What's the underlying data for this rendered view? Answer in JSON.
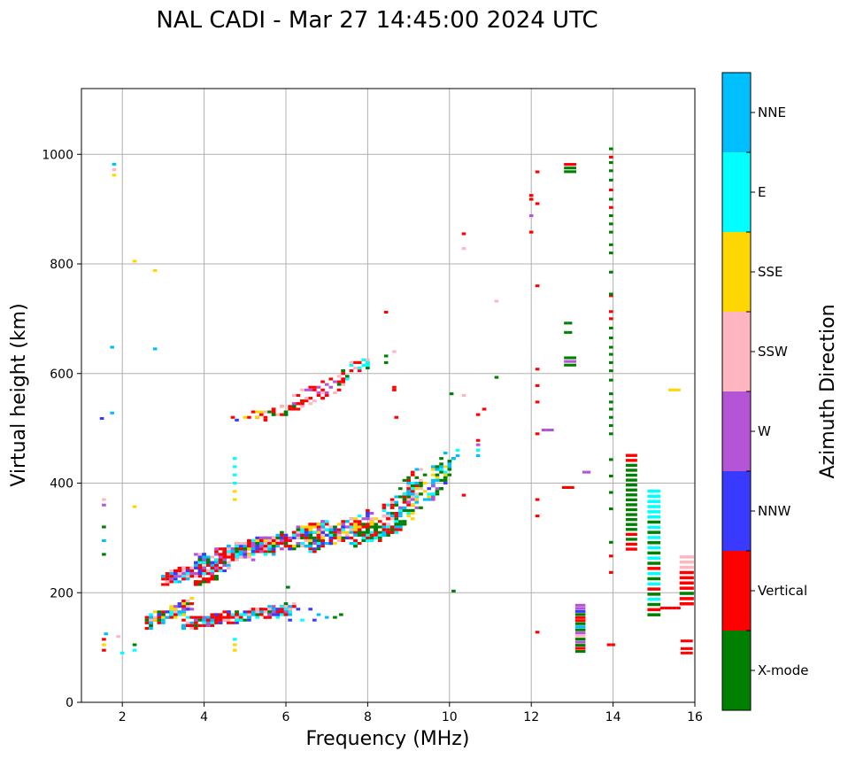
{
  "chart_data": {
    "type": "scatter",
    "title": "NAL CADI - Mar 27 14:45:00 2024 UTC",
    "xlabel": "Frequency (MHz)",
    "ylabel": "Virtual height (km)",
    "xlim": [
      1,
      16
    ],
    "ylim": [
      0,
      1120
    ],
    "xticks": [
      2,
      4,
      6,
      8,
      10,
      12,
      14,
      16
    ],
    "yticks": [
      0,
      200,
      400,
      600,
      800,
      1000
    ],
    "grid": true,
    "colorbar": {
      "label": "Azimuth Direction",
      "categories": [
        {
          "name": "X-mode",
          "color": "#008000"
        },
        {
          "name": "Vertical",
          "color": "#ff0000"
        },
        {
          "name": "NNW",
          "color": "#3a3aff"
        },
        {
          "name": "W",
          "color": "#b455d6"
        },
        {
          "name": "SSW",
          "color": "#ffb6c1"
        },
        {
          "name": "SSE",
          "color": "#ffd700"
        },
        {
          "name": "E",
          "color": "#00ffff"
        },
        {
          "name": "NNE",
          "color": "#00bfff"
        }
      ]
    },
    "cell": {
      "df": 0.1,
      "dh": 5
    },
    "points": [
      {
        "f": 1.55,
        "h": 95,
        "c": "Vertical"
      },
      {
        "f": 1.55,
        "h": 105,
        "c": "SSE"
      },
      {
        "f": 1.55,
        "h": 115,
        "c": "Vertical"
      },
      {
        "f": 1.6,
        "h": 125,
        "c": "NNE"
      },
      {
        "f": 1.55,
        "h": 270,
        "c": "X-mode"
      },
      {
        "f": 1.55,
        "h": 295,
        "c": "NNE"
      },
      {
        "f": 1.55,
        "h": 320,
        "c": "X-mode"
      },
      {
        "f": 1.55,
        "h": 360,
        "c": "W"
      },
      {
        "f": 1.55,
        "h": 370,
        "c": "SSW"
      },
      {
        "f": 1.5,
        "h": 518,
        "c": "NNW"
      },
      {
        "f": 1.75,
        "h": 528,
        "c": "NNE"
      },
      {
        "f": 1.75,
        "h": 648,
        "c": "NNE"
      },
      {
        "f": 1.8,
        "h": 962,
        "c": "SSE"
      },
      {
        "f": 1.8,
        "h": 972,
        "c": "SSW"
      },
      {
        "f": 1.8,
        "h": 982,
        "c": "NNE"
      },
      {
        "f": 2.3,
        "h": 805,
        "c": "SSE"
      },
      {
        "f": 2.8,
        "h": 788,
        "c": "SSE"
      },
      {
        "f": 2.8,
        "h": 645,
        "c": "NNE"
      },
      {
        "f": 2.3,
        "h": 357,
        "c": "SSE"
      },
      {
        "f": 2.3,
        "h": 95,
        "c": "E"
      },
      {
        "f": 2.3,
        "h": 105,
        "c": "X-mode"
      },
      {
        "f": 2.0,
        "h": 90,
        "c": "E"
      },
      {
        "f": 1.9,
        "h": 120,
        "c": "SSW"
      },
      {
        "f": 4.75,
        "h": 95,
        "c": "SSE"
      },
      {
        "f": 4.75,
        "h": 105,
        "c": "SSE"
      },
      {
        "f": 4.75,
        "h": 115,
        "c": "E"
      },
      {
        "f": 4.75,
        "h": 370,
        "c": "SSE"
      },
      {
        "f": 4.75,
        "h": 385,
        "c": "SSE"
      },
      {
        "f": 4.75,
        "h": 400,
        "c": "E"
      },
      {
        "f": 4.75,
        "h": 415,
        "c": "E"
      },
      {
        "f": 4.75,
        "h": 430,
        "c": "E"
      },
      {
        "f": 4.75,
        "h": 445,
        "c": "E"
      },
      {
        "f": 6.05,
        "h": 210,
        "c": "X-mode"
      },
      {
        "f": 6.1,
        "h": 150,
        "c": "NNW"
      },
      {
        "f": 6.3,
        "h": 170,
        "c": "NNW"
      },
      {
        "f": 6.6,
        "h": 170,
        "c": "NNW"
      },
      {
        "f": 6.7,
        "h": 150,
        "c": "NNW"
      },
      {
        "f": 6.8,
        "h": 160,
        "c": "NNE"
      },
      {
        "f": 7.0,
        "h": 155,
        "c": "NNE"
      },
      {
        "f": 7.2,
        "h": 155,
        "c": "X-mode"
      },
      {
        "f": 7.35,
        "h": 160,
        "c": "X-mode"
      },
      {
        "f": 6.4,
        "h": 150,
        "c": "E"
      },
      {
        "f": 8.45,
        "h": 620,
        "c": "X-mode"
      },
      {
        "f": 8.45,
        "h": 632,
        "c": "X-mode"
      },
      {
        "f": 8.45,
        "h": 712,
        "c": "Vertical"
      },
      {
        "f": 8.65,
        "h": 570,
        "c": "Vertical"
      },
      {
        "f": 8.65,
        "h": 575,
        "c": "Vertical"
      },
      {
        "f": 8.7,
        "h": 520,
        "c": "Vertical"
      },
      {
        "f": 8.65,
        "h": 640,
        "c": "SSW"
      },
      {
        "f": 10.35,
        "h": 855,
        "c": "Vertical"
      },
      {
        "f": 10.35,
        "h": 828,
        "c": "SSW"
      },
      {
        "f": 10.7,
        "h": 525,
        "c": "Vertical"
      },
      {
        "f": 10.85,
        "h": 535,
        "c": "Vertical"
      },
      {
        "f": 10.05,
        "h": 563,
        "c": "X-mode"
      },
      {
        "f": 10.35,
        "h": 560,
        "c": "SSW"
      },
      {
        "f": 10.35,
        "h": 378,
        "c": "Vertical"
      },
      {
        "f": 10.1,
        "h": 203,
        "c": "X-mode"
      },
      {
        "f": 11.15,
        "h": 593,
        "c": "X-mode"
      },
      {
        "f": 11.15,
        "h": 732,
        "c": "SSW"
      },
      {
        "f": 10.7,
        "h": 450,
        "c": "NNE"
      },
      {
        "f": 10.7,
        "h": 460,
        "c": "E"
      },
      {
        "f": 10.7,
        "h": 470,
        "c": "W"
      },
      {
        "f": 10.7,
        "h": 478,
        "c": "Vertical"
      },
      {
        "f": 12.0,
        "h": 858,
        "c": "Vertical"
      },
      {
        "f": 12.0,
        "h": 888,
        "c": "W"
      },
      {
        "f": 12.0,
        "h": 918,
        "c": "Vertical"
      },
      {
        "f": 12.0,
        "h": 925,
        "c": "Vertical"
      },
      {
        "f": 12.15,
        "h": 910,
        "c": "Vertical"
      },
      {
        "f": 12.15,
        "h": 968,
        "c": "Vertical"
      },
      {
        "f": 12.15,
        "h": 760,
        "c": "Vertical"
      },
      {
        "f": 12.15,
        "h": 608,
        "c": "Vertical"
      },
      {
        "f": 12.15,
        "h": 578,
        "c": "Vertical"
      },
      {
        "f": 12.15,
        "h": 548,
        "c": "Vertical"
      },
      {
        "f": 12.15,
        "h": 490,
        "c": "Vertical"
      },
      {
        "f": 12.15,
        "h": 370,
        "c": "Vertical"
      },
      {
        "f": 12.15,
        "h": 340,
        "c": "Vertical"
      },
      {
        "f": 12.15,
        "h": 128,
        "c": "Vertical"
      },
      {
        "f": 12.3,
        "h": 497,
        "c": "W"
      },
      {
        "f": 12.4,
        "h": 497,
        "c": "W"
      },
      {
        "f": 12.5,
        "h": 497,
        "c": "W"
      },
      {
        "f": 13.3,
        "h": 420,
        "c": "W"
      },
      {
        "f": 13.4,
        "h": 420,
        "c": "W"
      },
      {
        "f": 12.8,
        "h": 392,
        "c": "Vertical"
      },
      {
        "f": 12.9,
        "h": 392,
        "c": "Vertical"
      },
      {
        "f": 13.0,
        "h": 392,
        "c": "Vertical"
      },
      {
        "f": 12.85,
        "h": 692,
        "c": "X-mode"
      },
      {
        "f": 12.95,
        "h": 692,
        "c": "X-mode"
      },
      {
        "f": 12.85,
        "h": 675,
        "c": "X-mode"
      },
      {
        "f": 12.95,
        "h": 675,
        "c": "X-mode"
      },
      {
        "f": 14.0,
        "h": 105,
        "c": "Vertical"
      },
      {
        "f": 13.9,
        "h": 105,
        "c": "Vertical"
      },
      {
        "f": 13.95,
        "h": 237,
        "c": "Vertical"
      },
      {
        "f": 13.95,
        "h": 267,
        "c": "Vertical"
      },
      {
        "f": 13.95,
        "h": 292,
        "c": "X-mode"
      },
      {
        "f": 13.95,
        "h": 353,
        "c": "X-mode"
      },
      {
        "f": 13.95,
        "h": 383,
        "c": "X-mode"
      },
      {
        "f": 13.95,
        "h": 413,
        "c": "X-mode"
      },
      {
        "f": 13.95,
        "h": 443,
        "c": "X-mode"
      },
      {
        "f": 13.95,
        "h": 490,
        "c": "X-mode"
      },
      {
        "f": 13.95,
        "h": 505,
        "c": "X-mode"
      },
      {
        "f": 13.95,
        "h": 520,
        "c": "X-mode"
      },
      {
        "f": 13.95,
        "h": 535,
        "c": "X-mode"
      },
      {
        "f": 13.95,
        "h": 548,
        "c": "X-mode"
      },
      {
        "f": 13.95,
        "h": 563,
        "c": "X-mode"
      },
      {
        "f": 13.95,
        "h": 588,
        "c": "X-mode"
      },
      {
        "f": 13.95,
        "h": 605,
        "c": "X-mode"
      },
      {
        "f": 13.95,
        "h": 620,
        "c": "X-mode"
      },
      {
        "f": 13.95,
        "h": 635,
        "c": "X-mode"
      },
      {
        "f": 13.95,
        "h": 648,
        "c": "X-mode"
      },
      {
        "f": 13.95,
        "h": 665,
        "c": "X-mode"
      },
      {
        "f": 13.95,
        "h": 683,
        "c": "X-mode"
      },
      {
        "f": 13.95,
        "h": 700,
        "c": "Vertical"
      },
      {
        "f": 13.95,
        "h": 713,
        "c": "Vertical"
      },
      {
        "f": 13.95,
        "h": 742,
        "c": "Vertical"
      },
      {
        "f": 13.95,
        "h": 745,
        "c": "X-mode"
      },
      {
        "f": 13.95,
        "h": 785,
        "c": "X-mode"
      },
      {
        "f": 13.95,
        "h": 820,
        "c": "X-mode"
      },
      {
        "f": 13.95,
        "h": 835,
        "c": "X-mode"
      },
      {
        "f": 13.95,
        "h": 858,
        "c": "X-mode"
      },
      {
        "f": 13.95,
        "h": 873,
        "c": "X-mode"
      },
      {
        "f": 13.95,
        "h": 888,
        "c": "X-mode"
      },
      {
        "f": 13.95,
        "h": 903,
        "c": "Vertical"
      },
      {
        "f": 13.95,
        "h": 918,
        "c": "X-mode"
      },
      {
        "f": 13.95,
        "h": 935,
        "c": "Vertical"
      },
      {
        "f": 13.95,
        "h": 953,
        "c": "X-mode"
      },
      {
        "f": 13.95,
        "h": 970,
        "c": "X-mode"
      },
      {
        "f": 13.95,
        "h": 985,
        "c": "X-mode"
      },
      {
        "f": 13.95,
        "h": 995,
        "c": "Vertical"
      },
      {
        "f": 13.95,
        "h": 1010,
        "c": "X-mode"
      },
      {
        "f": 15.4,
        "h": 570,
        "c": "SSE"
      },
      {
        "f": 15.5,
        "h": 570,
        "c": "SSE"
      },
      {
        "f": 15.6,
        "h": 570,
        "c": "SSE"
      },
      {
        "f": 15.2,
        "h": 172,
        "c": "Vertical"
      },
      {
        "f": 15.3,
        "h": 172,
        "c": "Vertical"
      },
      {
        "f": 15.4,
        "h": 172,
        "c": "Vertical"
      },
      {
        "f": 15.5,
        "h": 172,
        "c": "Vertical"
      },
      {
        "f": 15.6,
        "h": 172,
        "c": "Vertical"
      },
      {
        "f": 15.7,
        "h": 90,
        "c": "Vertical"
      },
      {
        "f": 15.8,
        "h": 90,
        "c": "Vertical"
      },
      {
        "f": 15.9,
        "h": 90,
        "c": "Vertical"
      },
      {
        "f": 15.7,
        "h": 98,
        "c": "Vertical"
      },
      {
        "f": 15.8,
        "h": 98,
        "c": "Vertical"
      },
      {
        "f": 15.9,
        "h": 98,
        "c": "Vertical"
      },
      {
        "f": 15.7,
        "h": 112,
        "c": "Vertical"
      },
      {
        "f": 15.8,
        "h": 112,
        "c": "Vertical"
      },
      {
        "f": 15.9,
        "h": 112,
        "c": "Vertical"
      }
    ],
    "columns": [
      {
        "f": 12.95,
        "df": 0.3,
        "h0": 965,
        "h1": 985,
        "colors": [
          "X-mode",
          "X-mode",
          "Vertical"
        ]
      },
      {
        "f": 12.95,
        "df": 0.3,
        "h0": 612,
        "h1": 632,
        "colors": [
          "X-mode",
          "W",
          "X-mode"
        ]
      },
      {
        "f": 13.2,
        "df": 0.25,
        "h0": 90,
        "h1": 180,
        "colors": [
          "X-mode",
          "Vertical",
          "X-mode",
          "W",
          "X-mode",
          "SSW",
          "W",
          "X-mode",
          "NNE",
          "X-mode",
          "Vertical",
          "Vertical",
          "X-mode",
          "NNW",
          "W",
          "W"
        ]
      },
      {
        "f": 14.45,
        "df": 0.28,
        "h0": 275,
        "h1": 455,
        "colors": [
          "Vertical",
          "Vertical",
          "X-mode",
          "Vertical",
          "X-mode",
          "X-mode",
          "X-mode",
          "X-mode",
          "X-mode",
          "X-mode",
          "X-mode",
          "X-mode",
          "X-mode",
          "X-mode",
          "X-mode",
          "X-mode",
          "X-mode",
          "X-mode",
          "Vertical",
          "Vertical"
        ]
      },
      {
        "f": 15.0,
        "df": 0.32,
        "h0": 155,
        "h1": 390,
        "colors": [
          "X-mode",
          "Vertical",
          "X-mode",
          "E",
          "X-mode",
          "Vertical",
          "E",
          "X-mode",
          "E",
          "Vertical",
          "X-mode",
          "E",
          "X-mode",
          "E",
          "X-mode",
          "E",
          "X-mode",
          "E",
          "X-mode",
          "E",
          "E",
          "E",
          "E",
          "E",
          "E"
        ]
      },
      {
        "f": 15.8,
        "df": 0.35,
        "h0": 175,
        "h1": 270,
        "colors": [
          "Vertical",
          "Vertical",
          "X-mode",
          "Vertical",
          "Vertical",
          "Vertical",
          "Vertical",
          "SSW",
          "SSW",
          "SSW"
        ]
      }
    ],
    "clusters": [
      {
        "f0": 3.5,
        "f1": 6.2,
        "h0": 140,
        "h1": 185,
        "n": 260,
        "colors": [
          "Vertical",
          "Vertical",
          "Vertical",
          "Vertical",
          "NNE",
          "E",
          "NNW",
          "W",
          "SSW",
          "X-mode"
        ]
      },
      {
        "f0": 2.6,
        "f1": 3.7,
        "h0": 140,
        "h1": 195,
        "n": 110,
        "colors": [
          "Vertical",
          "NNE",
          "E",
          "SSW",
          "SSE",
          "W",
          "X-mode",
          "NNW"
        ]
      },
      {
        "f0": 3.0,
        "f1": 4.6,
        "h0": 220,
        "h1": 270,
        "n": 150,
        "colors": [
          "Vertical",
          "Vertical",
          "NNE",
          "NNW",
          "E",
          "SSW",
          "W"
        ]
      },
      {
        "f0": 3.8,
        "f1": 5.6,
        "h0": 250,
        "h1": 310,
        "n": 200,
        "colors": [
          "Vertical",
          "Vertical",
          "NNW",
          "NNE",
          "E",
          "SSW",
          "W",
          "X-mode"
        ]
      },
      {
        "f0": 5.0,
        "f1": 7.0,
        "h0": 265,
        "h1": 340,
        "n": 220,
        "colors": [
          "Vertical",
          "Vertical",
          "NNW",
          "NNE",
          "SSW",
          "W",
          "E",
          "X-mode",
          "SSE"
        ]
      },
      {
        "f0": 6.5,
        "f1": 8.2,
        "h0": 280,
        "h1": 360,
        "n": 180,
        "colors": [
          "Vertical",
          "Vertical",
          "X-mode",
          "NNE",
          "E",
          "W",
          "SSW",
          "NNW",
          "SSE"
        ]
      },
      {
        "f0": 3.7,
        "f1": 4.3,
        "h0": 215,
        "h1": 232,
        "n": 40,
        "colors": [
          "Vertical",
          "Vertical",
          "X-mode"
        ]
      },
      {
        "f0": 7.6,
        "f1": 8.9,
        "h0": 290,
        "h1": 340,
        "n": 90,
        "colors": [
          "X-mode",
          "X-mode",
          "Vertical",
          "NNE",
          "E"
        ]
      },
      {
        "f0": 8.3,
        "f1": 9.3,
        "h0": 310,
        "h1": 450,
        "n": 90,
        "colors": [
          "Vertical",
          "Vertical",
          "E",
          "NNE",
          "SSW",
          "X-mode"
        ]
      },
      {
        "f0": 8.8,
        "f1": 9.9,
        "h0": 330,
        "h1": 470,
        "n": 70,
        "colors": [
          "X-mode",
          "X-mode",
          "W",
          "E",
          "NNE",
          "SSE"
        ]
      },
      {
        "f0": 9.5,
        "f1": 10.2,
        "h0": 380,
        "h1": 470,
        "n": 30,
        "colors": [
          "X-mode",
          "E",
          "NNE",
          "W",
          "NNW"
        ]
      },
      {
        "f0": 5.5,
        "f1": 6.5,
        "h0": 520,
        "h1": 560,
        "n": 30,
        "colors": [
          "Vertical",
          "Vertical",
          "X-mode",
          "SSW"
        ]
      },
      {
        "f0": 6.2,
        "f1": 7.5,
        "h0": 540,
        "h1": 610,
        "n": 40,
        "colors": [
          "Vertical",
          "Vertical",
          "SSW",
          "W"
        ]
      },
      {
        "f0": 7.2,
        "f1": 8.0,
        "h0": 585,
        "h1": 645,
        "n": 30,
        "colors": [
          "Vertical",
          "Vertical",
          "SSW",
          "E",
          "X-mode"
        ]
      },
      {
        "f0": 4.7,
        "f1": 5.5,
        "h0": 515,
        "h1": 535,
        "n": 10,
        "colors": [
          "Vertical",
          "NNW",
          "SSE"
        ]
      }
    ]
  }
}
